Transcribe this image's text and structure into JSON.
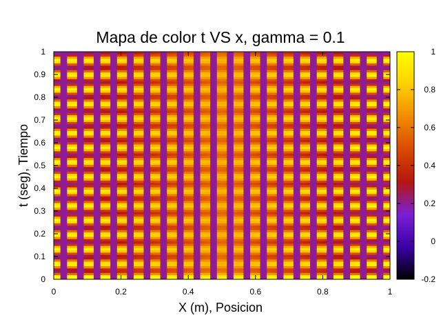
{
  "chart_data": {
    "type": "heatmap",
    "title": "Mapa de color t VS x, gamma = 0.1",
    "xlabel": "X (m), Posicion",
    "ylabel": "t (seg), Tiempo",
    "xlim": [
      0,
      1
    ],
    "ylim": [
      0,
      1
    ],
    "x_ticks": [
      "0",
      "0.2",
      "0.4",
      "0.6",
      "0.8",
      "1"
    ],
    "y_ticks": [
      "0",
      "0.1",
      "0.2",
      "0.3",
      "0.4",
      "0.5",
      "0.6",
      "0.7",
      "0.8",
      "0.9",
      "1"
    ],
    "colorbar": {
      "range": [
        -0.2,
        1
      ],
      "ticks": [
        "-0.2",
        "0",
        "0.2",
        "0.4",
        "0.6",
        "0.8",
        "1"
      ],
      "palette": [
        "#000000",
        "#3c00a8",
        "#7b1fd6",
        "#b5160f",
        "#d94a00",
        "#f08c00",
        "#ffd000",
        "#ffff00"
      ]
    },
    "grid": false,
    "legend": "none",
    "field": {
      "x_samples": 101,
      "t_samples": 101,
      "description_of_values": "stripes along x with interleaved low (~0.2) columns; amplitude oscillates in t"
    }
  }
}
